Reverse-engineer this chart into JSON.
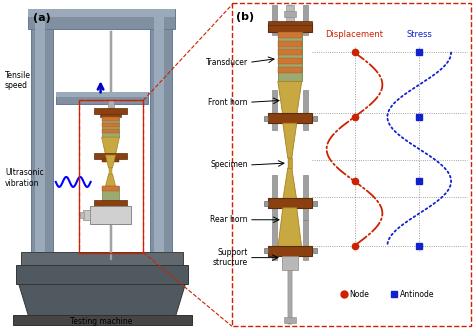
{
  "fig_width": 4.74,
  "fig_height": 3.29,
  "dpi": 100,
  "bg_color": "#ffffff",
  "panel_a_label": "(a)",
  "panel_b_label": "(b)",
  "text_tensile_speed": "Tensile\nspeed",
  "text_ultrasonic": "Ultrasonic\nvibration",
  "text_testing_machine": "Testing machine",
  "text_transducer": "Transducer",
  "text_front_horn": "Front horn",
  "text_specimen": "Specimen",
  "text_rear_horn": "Rear horn",
  "text_support": "Support\nstructure",
  "text_displacement": "Displacement",
  "text_stress": "Stress",
  "text_node": "Node",
  "text_antinode": "Antinode",
  "red_color": "#cc2200",
  "blue_color": "#1122cc",
  "brown_color": "#8B4010",
  "gray_col": "#8090a0",
  "base_color": "#606870",
  "green_trans": "#9aaa70",
  "tan_horn": "#c8a840",
  "silver": "#aaaaaa",
  "dark_silver": "#888888"
}
